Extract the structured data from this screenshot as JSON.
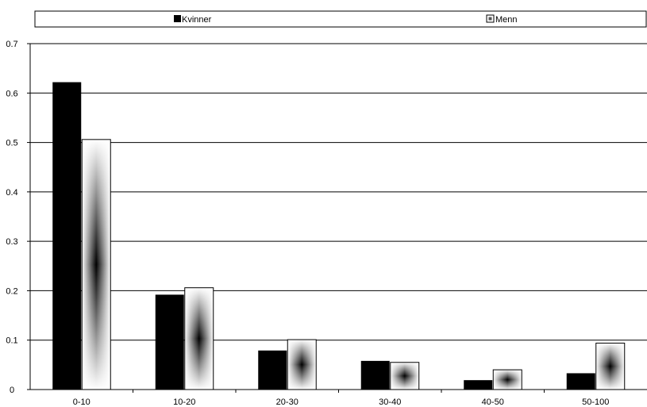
{
  "chart_data": {
    "type": "bar",
    "title": "",
    "xlabel": "",
    "ylabel": "",
    "categories": [
      "0-10",
      "10-20",
      "20-30",
      "30-40",
      "40-50",
      "50-100"
    ],
    "series": [
      {
        "name": "Kvinner",
        "values": [
          0.622,
          0.192,
          0.079,
          0.058,
          0.019,
          0.033
        ],
        "color": "#000000",
        "fill": "solid"
      },
      {
        "name": "Menn",
        "values": [
          0.506,
          0.206,
          0.101,
          0.055,
          0.04,
          0.094
        ],
        "color": "#000000",
        "fill": "gradient-white-black-center"
      }
    ],
    "ylim": [
      0,
      0.7
    ],
    "yticks": [
      "0",
      "0.1",
      "0.2",
      "0.3",
      "0.4",
      "0.5",
      "0.6",
      "0.7"
    ],
    "grid": true,
    "legend_position": "top"
  }
}
